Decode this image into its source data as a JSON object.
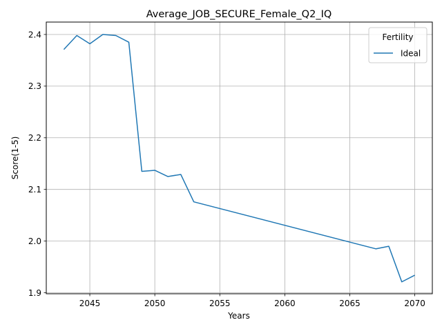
{
  "chart_data": {
    "type": "line",
    "title": "Average_JOB_SECURE_Female_Q2_IQ",
    "xlabel": "Years",
    "ylabel": "Score(1-5)",
    "xlim": [
      2041.65,
      2071.35
    ],
    "ylim": [
      1.898,
      2.424
    ],
    "x_ticks": [
      2045,
      2050,
      2055,
      2060,
      2065,
      2070
    ],
    "y_ticks": [
      1.9,
      2.0,
      2.1,
      2.2,
      2.3,
      2.4
    ],
    "x_tick_labels": [
      "2045",
      "2050",
      "2055",
      "2060",
      "2065",
      "2070"
    ],
    "y_tick_labels": [
      "1.9",
      "2.0",
      "2.1",
      "2.2",
      "2.3",
      "2.4"
    ],
    "grid": true,
    "legend": {
      "title": "Fertility",
      "placement": "top-right"
    },
    "series": [
      {
        "name": "Ideal",
        "color": "#1f77b4",
        "x": [
          2043,
          2044,
          2045,
          2046,
          2047,
          2048,
          2049,
          2050,
          2051,
          2052,
          2053,
          2067,
          2068,
          2069,
          2070
        ],
        "y": [
          2.371,
          2.398,
          2.382,
          2.4,
          2.398,
          2.385,
          2.135,
          2.137,
          2.125,
          2.129,
          2.076,
          1.985,
          1.99,
          1.921,
          1.934
        ]
      }
    ]
  }
}
